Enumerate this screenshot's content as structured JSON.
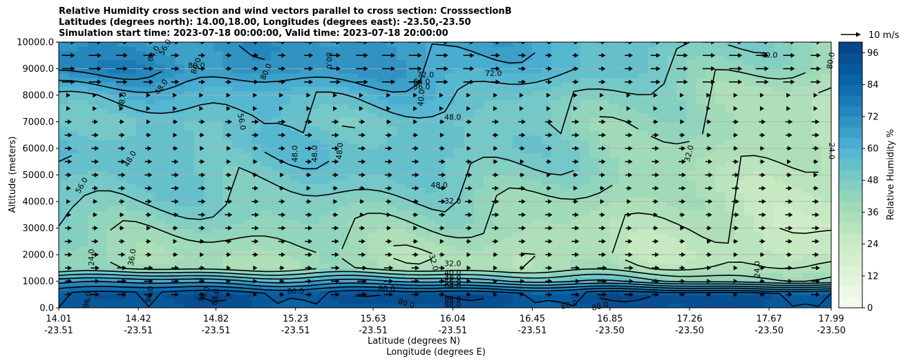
{
  "title_lines": [
    "Relative Humidity cross section and wind vectors parallel to cross section: CrosssectionB",
    "Latitudes (degrees north): 14.00,18.00, Longitudes (degrees east): -23.50,-23.50",
    "Simulation start time: 2023-07-18 00:00:00, Valid time: 2023-07-18 20:00:00"
  ],
  "chart_data": {
    "type": "heatmap",
    "variable": "Relative Humidity %",
    "overlay": "wind vectors parallel to cross section (quiver)",
    "ylabel": "Altitude (meters)",
    "xlabel_lines": [
      "Latitude (degrees N)",
      "Longitude (degrees E)"
    ],
    "ylim": [
      0,
      10000
    ],
    "y_ticks": [
      "0.0",
      "1000.0",
      "2000.0",
      "3000.0",
      "4000.0",
      "5000.0",
      "6000.0",
      "7000.0",
      "8000.0",
      "9000.0",
      "10000.0"
    ],
    "x_ticks_lat": [
      "14.01",
      "14.42",
      "14.82",
      "15.23",
      "15.63",
      "16.04",
      "16.45",
      "16.85",
      "17.26",
      "17.67",
      "17.99"
    ],
    "x_ticks_lon": [
      "-23.51",
      "-23.51",
      "-23.51",
      "-23.51",
      "-23.51",
      "-23.51",
      "-23.51",
      "-23.50",
      "-23.50",
      "-23.50",
      "-23.50"
    ],
    "colorbar": {
      "label": "Relative Humidity %",
      "min": 0,
      "max": 100,
      "step": 4,
      "tick_labels": [
        "0",
        "12",
        "24",
        "36",
        "48",
        "60",
        "72",
        "84",
        "96"
      ],
      "cmap": "GnBu"
    },
    "quiver_key": "10 m/s",
    "grid": "horizontal",
    "profile": {
      "altitude_m": [
        0,
        500,
        1000,
        1500,
        2000,
        3000,
        4000,
        5000,
        6000,
        7000,
        8000,
        9000,
        10000
      ],
      "rh_left": [
        90,
        92,
        70,
        38,
        38,
        44,
        50,
        52,
        55,
        52,
        58,
        75,
        70
      ],
      "rh_mid": [
        90,
        95,
        62,
        35,
        34,
        40,
        45,
        52,
        55,
        52,
        58,
        66,
        68
      ],
      "rh_right": [
        92,
        95,
        40,
        32,
        26,
        24,
        26,
        26,
        28,
        32,
        30,
        36,
        40
      ]
    },
    "contour_labels": [
      "96.0",
      "88.0",
      "80.0",
      "72.0",
      "64.0",
      "56.0",
      "48.0",
      "40.0",
      "32.0",
      "24.0"
    ],
    "labels_on_plot": [
      {
        "text": "80.0",
        "lat": 14.72,
        "alt": 9100,
        "rot": 0
      },
      {
        "text": "72.0",
        "lat": 15.9,
        "alt": 8750,
        "rot": 0
      },
      {
        "text": "64.0",
        "lat": 15.88,
        "alt": 8500,
        "rot": 0
      },
      {
        "text": "56.0",
        "lat": 15.88,
        "alt": 8300,
        "rot": 0
      },
      {
        "text": "48.0",
        "lat": 16.04,
        "alt": 7150,
        "rot": 0
      },
      {
        "text": "40.0",
        "lat": 17.67,
        "alt": 9500,
        "rot": 0
      },
      {
        "text": "48.0",
        "lat": 15.97,
        "alt": 4600,
        "rot": 0
      },
      {
        "text": "32.0",
        "lat": 16.04,
        "alt": 4000,
        "rot": 0
      },
      {
        "text": "32.0",
        "lat": 16.04,
        "alt": 1650,
        "rot": 0
      },
      {
        "text": "40.0",
        "lat": 16.04,
        "alt": 1300,
        "rot": 0
      },
      {
        "text": "48.0",
        "lat": 16.04,
        "alt": 1100,
        "rot": 0
      },
      {
        "text": "56.0",
        "lat": 16.04,
        "alt": 950,
        "rot": 0
      },
      {
        "text": "64.0",
        "lat": 16.04,
        "alt": 800,
        "rot": 0
      },
      {
        "text": "96.0",
        "lat": 16.04,
        "alt": 300,
        "rot": 0
      },
      {
        "text": "88.0",
        "lat": 16.04,
        "alt": 100,
        "rot": 0
      },
      {
        "text": "80.0",
        "lat": 15.7,
        "alt": 700,
        "rot": 0
      },
      {
        "text": "80.0",
        "lat": 15.8,
        "alt": 150,
        "rot": 15
      },
      {
        "text": "88.0",
        "lat": 16.64,
        "alt": 100,
        "rot": -15
      },
      {
        "text": "88.0",
        "lat": 16.8,
        "alt": 50,
        "rot": -15
      },
      {
        "text": "56.0",
        "lat": 14.56,
        "alt": 9800,
        "rot": -60
      },
      {
        "text": "64.0",
        "lat": 14.5,
        "alt": 9550,
        "rot": -60
      },
      {
        "text": "80.0",
        "lat": 14.72,
        "alt": 9100,
        "rot": -70
      },
      {
        "text": "80.0",
        "lat": 15.08,
        "alt": 8880,
        "rot": -65
      },
      {
        "text": "48.0",
        "lat": 14.54,
        "alt": 8300,
        "rot": -55
      },
      {
        "text": "48.0",
        "lat": 14.34,
        "alt": 7800,
        "rot": -80
      },
      {
        "text": "56.0",
        "lat": 14.95,
        "alt": 7000,
        "rot": 80
      },
      {
        "text": "40.0",
        "lat": 15.88,
        "alt": 7900,
        "rot": -85
      },
      {
        "text": "48.0",
        "lat": 14.38,
        "alt": 5600,
        "rot": -60
      },
      {
        "text": "56.0",
        "lat": 14.13,
        "alt": 4600,
        "rot": -60
      },
      {
        "text": "48.0",
        "lat": 15.23,
        "alt": 5800,
        "rot": -90
      },
      {
        "text": "48.0",
        "lat": 15.33,
        "alt": 5800,
        "rot": -90
      },
      {
        "text": "48.0",
        "lat": 15.46,
        "alt": 5900,
        "rot": -85
      },
      {
        "text": "32.0",
        "lat": 17.26,
        "alt": 5800,
        "rot": -75
      },
      {
        "text": "24.0",
        "lat": 17.99,
        "alt": 5900,
        "rot": 90
      },
      {
        "text": "24.0",
        "lat": 17.61,
        "alt": 1450,
        "rot": -90
      },
      {
        "text": "24.0",
        "lat": 14.18,
        "alt": 1900,
        "rot": -90
      },
      {
        "text": "32.0",
        "lat": 15.94,
        "alt": 1700,
        "rot": 75
      },
      {
        "text": "36.0",
        "lat": 14.39,
        "alt": 1900,
        "rot": -80
      },
      {
        "text": "96.0",
        "lat": 14.16,
        "alt": 300,
        "rot": -80
      },
      {
        "text": "96.0",
        "lat": 14.48,
        "alt": 500,
        "rot": -80
      },
      {
        "text": "88.0",
        "lat": 14.82,
        "alt": 400,
        "rot": -80
      },
      {
        "text": "96.0",
        "lat": 14.76,
        "alt": 500,
        "rot": -60
      },
      {
        "text": "80.0",
        "lat": 15.23,
        "alt": 600,
        "rot": 0
      },
      {
        "text": "72.0",
        "lat": 16.25,
        "alt": 8800,
        "rot": 0
      },
      {
        "text": "80.0",
        "lat": 17.99,
        "alt": 9300,
        "rot": -80
      },
      {
        "text": "80.0",
        "lat": 15.4,
        "alt": 9300,
        "rot": 90
      }
    ]
  }
}
